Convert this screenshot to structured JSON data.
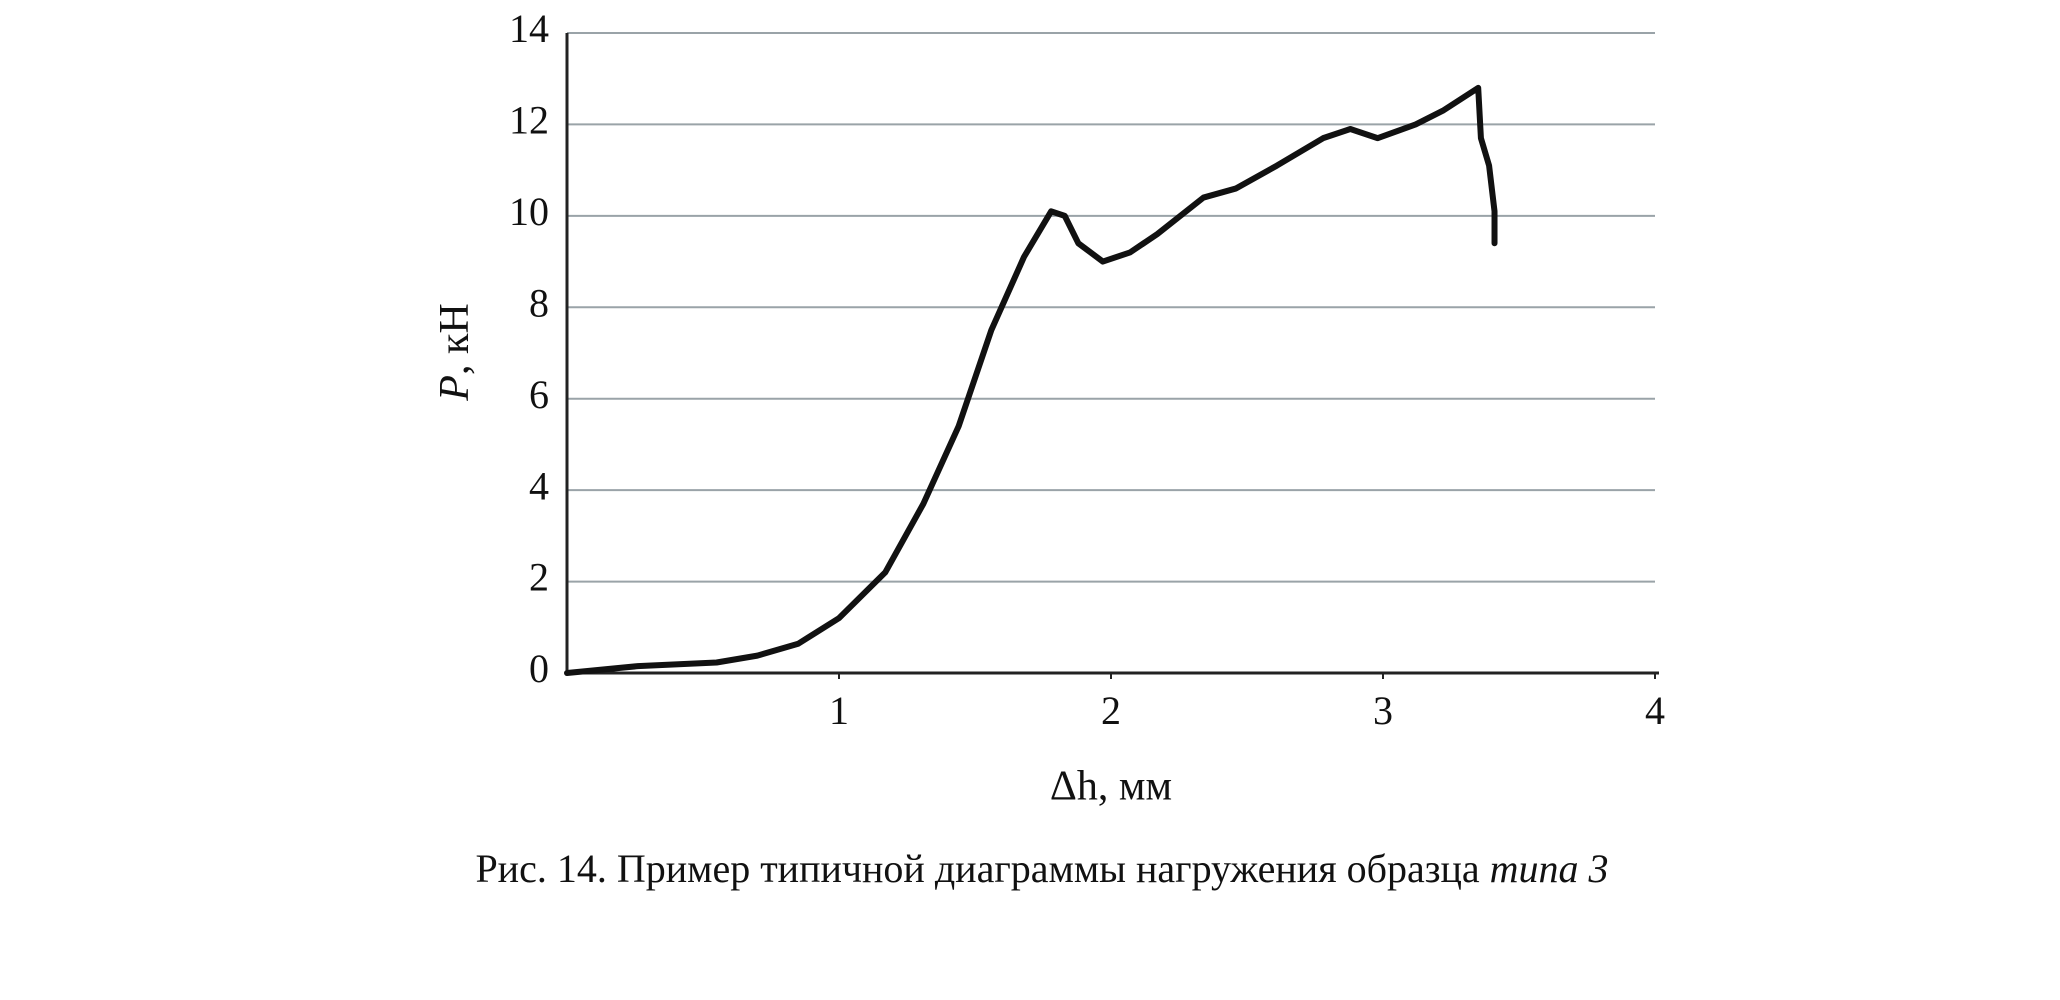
{
  "chart_data": {
    "type": "line",
    "x_label": "Δh, мм",
    "y_label_symbol": "P",
    "y_label_unit": ", кН",
    "caption": "Рис. 14. Пример типичной диаграммы нагружения образца ",
    "caption_emphasis": "типа 3",
    "xlim": [
      0,
      4
    ],
    "xticks": [
      1,
      2,
      3,
      4
    ],
    "ylim": [
      0,
      14
    ],
    "yticks": [
      0,
      2,
      4,
      6,
      8,
      10,
      12,
      14
    ],
    "grid": true,
    "series": [
      {
        "color": "#111111",
        "x": [
          0,
          0.26,
          0.55,
          0.7,
          0.85,
          1.0,
          1.17,
          1.31,
          1.44,
          1.56,
          1.68,
          1.78,
          1.83,
          1.88,
          1.97,
          2.07,
          2.17,
          2.34,
          2.46,
          2.61,
          2.78,
          2.88,
          2.98,
          3.12,
          3.22,
          3.35,
          3.36,
          3.39,
          3.41,
          3.41
        ],
        "values": [
          0,
          0.15,
          0.23,
          0.38,
          0.64,
          1.2,
          2.2,
          3.7,
          5.4,
          7.5,
          9.1,
          10.1,
          10.0,
          9.4,
          9.0,
          9.2,
          9.6,
          10.4,
          10.6,
          11.1,
          11.7,
          11.9,
          11.7,
          12.0,
          12.3,
          12.8,
          11.7,
          11.1,
          10.1,
          9.4
        ]
      }
    ]
  }
}
